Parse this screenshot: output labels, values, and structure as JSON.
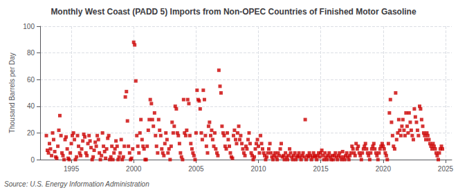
{
  "chart_data": {
    "type": "scatter",
    "title": "Monthly West Coast (PADD 5) Imports from Non-OPEC Countries of Finished Motor Gasoline",
    "ylabel": "Thousand Barrels per Day",
    "annotations": [
      "Source: U.S. Energy Information Administration"
    ],
    "color": "#cc0000",
    "marker": "square",
    "grid": true,
    "xlim": [
      1992.5,
      2025.5
    ],
    "xticks": [
      1995,
      2000,
      2005,
      2010,
      2015,
      2020,
      2025
    ],
    "ylim": [
      0,
      100
    ],
    "yticks": [
      0,
      20,
      40,
      60,
      80,
      100
    ],
    "x": [
      1993.0,
      1993.08,
      1993.17,
      1993.25,
      1993.33,
      1993.42,
      1993.5,
      1993.58,
      1993.67,
      1993.75,
      1993.83,
      1993.92,
      1994.0,
      1994.08,
      1994.17,
      1994.25,
      1994.33,
      1994.42,
      1994.5,
      1994.58,
      1994.67,
      1994.75,
      1994.83,
      1994.92,
      1995.0,
      1995.08,
      1995.17,
      1995.25,
      1995.33,
      1995.42,
      1995.5,
      1995.58,
      1995.67,
      1995.75,
      1995.83,
      1995.92,
      1996.0,
      1996.08,
      1996.17,
      1996.25,
      1996.33,
      1996.42,
      1996.5,
      1996.58,
      1996.67,
      1996.75,
      1996.83,
      1996.92,
      1997.0,
      1997.08,
      1997.17,
      1997.25,
      1997.33,
      1997.42,
      1997.5,
      1997.58,
      1997.67,
      1997.75,
      1997.83,
      1997.92,
      1998.0,
      1998.08,
      1998.17,
      1998.25,
      1998.33,
      1998.42,
      1998.5,
      1998.58,
      1998.67,
      1998.75,
      1998.83,
      1998.92,
      1999.0,
      1999.08,
      1999.17,
      1999.25,
      1999.33,
      1999.42,
      1999.5,
      1999.58,
      1999.67,
      1999.75,
      1999.83,
      1999.92,
      2000.0,
      2000.08,
      2000.17,
      2000.25,
      2000.33,
      2000.42,
      2000.5,
      2000.58,
      2000.67,
      2000.75,
      2000.83,
      2000.92,
      2001.0,
      2001.08,
      2001.17,
      2001.25,
      2001.33,
      2001.42,
      2001.5,
      2001.58,
      2001.67,
      2001.75,
      2001.83,
      2001.92,
      2002.0,
      2002.08,
      2002.17,
      2002.25,
      2002.33,
      2002.42,
      2002.5,
      2002.58,
      2002.67,
      2002.75,
      2002.83,
      2002.92,
      2003.0,
      2003.08,
      2003.17,
      2003.25,
      2003.33,
      2003.42,
      2003.5,
      2003.58,
      2003.67,
      2003.75,
      2003.83,
      2003.92,
      2004.0,
      2004.08,
      2004.17,
      2004.25,
      2004.33,
      2004.42,
      2004.5,
      2004.58,
      2004.67,
      2004.75,
      2004.83,
      2004.92,
      2005.0,
      2005.08,
      2005.17,
      2005.25,
      2005.33,
      2005.42,
      2005.5,
      2005.58,
      2005.67,
      2005.75,
      2005.83,
      2005.92,
      2006.0,
      2006.08,
      2006.17,
      2006.25,
      2006.33,
      2006.42,
      2006.5,
      2006.58,
      2006.67,
      2006.75,
      2006.83,
      2006.92,
      2007.0,
      2007.08,
      2007.17,
      2007.25,
      2007.33,
      2007.42,
      2007.5,
      2007.58,
      2007.67,
      2007.75,
      2007.83,
      2007.92,
      2008.0,
      2008.08,
      2008.17,
      2008.25,
      2008.33,
      2008.42,
      2008.5,
      2008.58,
      2008.67,
      2008.75,
      2008.83,
      2008.92,
      2009.0,
      2009.08,
      2009.17,
      2009.25,
      2009.33,
      2009.42,
      2009.5,
      2009.58,
      2009.67,
      2009.75,
      2009.83,
      2009.92,
      2010.0,
      2010.08,
      2010.17,
      2010.25,
      2010.33,
      2010.42,
      2010.5,
      2010.58,
      2010.67,
      2010.75,
      2010.83,
      2010.92,
      2011.0,
      2011.08,
      2011.17,
      2011.25,
      2011.33,
      2011.42,
      2011.5,
      2011.58,
      2011.67,
      2011.75,
      2011.83,
      2011.92,
      2012.0,
      2012.08,
      2012.17,
      2012.25,
      2012.33,
      2012.42,
      2012.5,
      2012.58,
      2012.67,
      2012.75,
      2012.83,
      2012.92,
      2013.0,
      2013.08,
      2013.17,
      2013.25,
      2013.33,
      2013.42,
      2013.5,
      2013.58,
      2013.67,
      2013.75,
      2013.83,
      2013.92,
      2014.0,
      2014.08,
      2014.17,
      2014.25,
      2014.33,
      2014.42,
      2014.5,
      2014.58,
      2014.67,
      2014.75,
      2014.83,
      2014.92,
      2015.0,
      2015.08,
      2015.17,
      2015.25,
      2015.33,
      2015.42,
      2015.5,
      2015.58,
      2015.67,
      2015.75,
      2015.83,
      2015.92,
      2016.0,
      2016.08,
      2016.17,
      2016.25,
      2016.33,
      2016.42,
      2016.5,
      2016.58,
      2016.67,
      2016.75,
      2016.83,
      2016.92,
      2017.0,
      2017.08,
      2017.17,
      2017.25,
      2017.33,
      2017.42,
      2017.5,
      2017.58,
      2017.67,
      2017.75,
      2017.83,
      2017.92,
      2018.0,
      2018.08,
      2018.17,
      2018.25,
      2018.33,
      2018.42,
      2018.5,
      2018.58,
      2018.67,
      2018.75,
      2018.83,
      2018.92,
      2019.0,
      2019.08,
      2019.17,
      2019.25,
      2019.33,
      2019.42,
      2019.5,
      2019.58,
      2019.67,
      2019.75,
      2019.83,
      2019.92,
      2020.0,
      2020.08,
      2020.17,
      2020.25,
      2020.33,
      2020.42,
      2020.5,
      2020.58,
      2020.67,
      2020.75,
      2020.83,
      2020.92,
      2021.0,
      2021.08,
      2021.17,
      2021.25,
      2021.33,
      2021.42,
      2021.5,
      2021.58,
      2021.67,
      2021.75,
      2021.83,
      2021.92,
      2022.0,
      2022.08,
      2022.17,
      2022.25,
      2022.33,
      2022.42,
      2022.5,
      2022.58,
      2022.67,
      2022.75,
      2022.83,
      2022.92,
      2023.0,
      2023.08,
      2023.17,
      2023.25,
      2023.33,
      2023.42,
      2023.5,
      2023.58,
      2023.67,
      2023.75,
      2023.83,
      2023.92,
      2024.0,
      2024.08,
      2024.17,
      2024.25,
      2024.33,
      2024.42,
      2024.5,
      2024.58,
      2024.67,
      2024.75
    ],
    "values": [
      18,
      7,
      5,
      12,
      8,
      3,
      20,
      15,
      6,
      2,
      1,
      10,
      22,
      33,
      18,
      5,
      3,
      0,
      15,
      17,
      8,
      1,
      0,
      5,
      12,
      18,
      20,
      15,
      0,
      2,
      18,
      10,
      5,
      3,
      8,
      14,
      19,
      17,
      5,
      3,
      12,
      18,
      14,
      9,
      0,
      2,
      7,
      13,
      10,
      18,
      15,
      5,
      0,
      3,
      20,
      10,
      6,
      1,
      8,
      16,
      18,
      0,
      2,
      10,
      0,
      5,
      8,
      14,
      10,
      0,
      2,
      5,
      15,
      0,
      2,
      10,
      47,
      51,
      29,
      10,
      5,
      0,
      1,
      8,
      88,
      86,
      59,
      18,
      10,
      5,
      20,
      30,
      15,
      10,
      8,
      0,
      0,
      10,
      22,
      30,
      45,
      42,
      30,
      25,
      35,
      18,
      10,
      5,
      30,
      22,
      18,
      8,
      5,
      3,
      12,
      20,
      15,
      5,
      8,
      0,
      10,
      28,
      20,
      25,
      40,
      38,
      20,
      18,
      12,
      5,
      2,
      0,
      45,
      20,
      18,
      22,
      45,
      42,
      18,
      12,
      8,
      5,
      3,
      0,
      20,
      52,
      45,
      44,
      38,
      20,
      15,
      52,
      45,
      18,
      10,
      5,
      25,
      28,
      18,
      22,
      15,
      10,
      20,
      8,
      5,
      3,
      67,
      55,
      50,
      25,
      20,
      18,
      10,
      8,
      20,
      15,
      10,
      5,
      2,
      1,
      18,
      22,
      15,
      12,
      20,
      25,
      15,
      18,
      12,
      8,
      5,
      3,
      10,
      8,
      15,
      20,
      12,
      5,
      3,
      0,
      2,
      8,
      12,
      15,
      10,
      5,
      18,
      12,
      8,
      5,
      3,
      0,
      2,
      5,
      8,
      12,
      5,
      2,
      0,
      3,
      5,
      2,
      0,
      5,
      3,
      8,
      12,
      2,
      3,
      0,
      5,
      2,
      0,
      3,
      8,
      5,
      2,
      0,
      3,
      5,
      0,
      2,
      3,
      5,
      2,
      0,
      3,
      5,
      2,
      30,
      0,
      3,
      2,
      5,
      3,
      0,
      2,
      5,
      3,
      2,
      0,
      3,
      5,
      2,
      5,
      7,
      3,
      0,
      5,
      2,
      0,
      3,
      5,
      2,
      0,
      3,
      0,
      3,
      5,
      2,
      0,
      3,
      5,
      2,
      0,
      6,
      2,
      0,
      3,
      5,
      2,
      0,
      3,
      5,
      10,
      8,
      5,
      3,
      12,
      8,
      10,
      5,
      3,
      0,
      5,
      8,
      10,
      12,
      8,
      5,
      3,
      0,
      5,
      8,
      10,
      12,
      8,
      5,
      3,
      0,
      5,
      8,
      10,
      12,
      10,
      8,
      5,
      3,
      0,
      12,
      35,
      45,
      28,
      18,
      10,
      8,
      50,
      15,
      20,
      30,
      22,
      18,
      25,
      30,
      22,
      18,
      35,
      25,
      20,
      35,
      28,
      22,
      18,
      15,
      38,
      32,
      28,
      22,
      18,
      40,
      38,
      30,
      25,
      20,
      18,
      15,
      20,
      18,
      15,
      12,
      10,
      8,
      12,
      10,
      8,
      5,
      3,
      0,
      5,
      8,
      10,
      8
    ]
  }
}
